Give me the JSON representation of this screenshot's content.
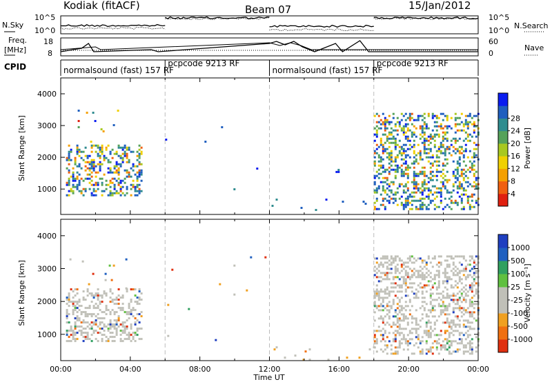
{
  "header": {
    "station": "Kodiak (fitACF)",
    "beam": "Beam 07",
    "date": "15/Jan/2012"
  },
  "top_panel": {
    "left_labels": [
      "N.Sky",
      "Freq.",
      "[MHz]",
      "CPID"
    ],
    "right_labels": [
      "N.Search",
      "Nave"
    ],
    "nsky_ticks": [
      "10^5",
      "10^0"
    ],
    "freq_ticks": [
      "18",
      "8"
    ],
    "nave_ticks": [
      "60",
      "0"
    ],
    "nsearch_ticks": [
      "10^5",
      "10^0"
    ],
    "cpid_segments": [
      {
        "label": "normalsound (fast) 157 RF",
        "start_hour": 0,
        "end_hour": 6
      },
      {
        "label": "pcpcode 9213 RF",
        "start_hour": 6,
        "end_hour": 12
      },
      {
        "label": "normalsound (fast) 157 RF",
        "start_hour": 12,
        "end_hour": 18
      },
      {
        "label": "pcpcode 9213 RF",
        "start_hour": 18,
        "end_hour": 24
      }
    ]
  },
  "chart_data": [
    {
      "type": "heatmap",
      "title": "Power",
      "ylabel": "Slant Range [km]",
      "xlabel": "",
      "xlim_hours": [
        0,
        24
      ],
      "ylim": [
        200,
        4500
      ],
      "yticks": [
        "1000",
        "2000",
        "3000",
        "4000"
      ],
      "colorbar": {
        "label": "Power [dB]",
        "ticks": [
          "4",
          "8",
          "12",
          "16",
          "20",
          "24",
          "28"
        ],
        "colors": [
          "#0a1cf0",
          "#1f5fbf",
          "#2f8c8f",
          "#55a25a",
          "#a8c820",
          "#f0d000",
          "#f5a000",
          "#f06010",
          "#e02010"
        ]
      },
      "echo_regions": [
        {
          "t0": 0.3,
          "t1": 4.7,
          "r0": 800,
          "r1": 2400,
          "density": "high",
          "level": "mixed-high"
        },
        {
          "t0": 0.5,
          "t1": 3.8,
          "r0": 2400,
          "r1": 3500,
          "density": "low",
          "level": "mixed"
        },
        {
          "t0": 6.0,
          "t1": 12.0,
          "r0": 300,
          "r1": 3500,
          "density": "very-low",
          "level": "low"
        },
        {
          "t0": 12.0,
          "t1": 18.0,
          "r0": 250,
          "r1": 700,
          "density": "low",
          "level": "low"
        },
        {
          "t0": 15.8,
          "t1": 16.1,
          "r0": 1550,
          "r1": 1700,
          "density": "medium",
          "level": "low"
        },
        {
          "t0": 18.0,
          "t1": 24.0,
          "r0": 400,
          "r1": 3400,
          "density": "high",
          "level": "mixed-high"
        }
      ]
    },
    {
      "type": "heatmap",
      "title": "Velocity",
      "ylabel": "Slant Range [km]",
      "xlabel": "Time UT",
      "xlim_hours": [
        0,
        24
      ],
      "ylim": [
        200,
        4500
      ],
      "yticks": [
        "1000",
        "2000",
        "3000",
        "4000"
      ],
      "xticks": [
        "00:00",
        "04:00",
        "08:00",
        "12:00",
        "16:00",
        "20:00",
        "00:00"
      ],
      "colorbar": {
        "label": "Velocity [m s⁻¹]",
        "ticks": [
          "1000",
          "500",
          "100",
          "25",
          "-25",
          "-100",
          "-500",
          "-1000"
        ],
        "colors": [
          "#1f3fc0",
          "#2060c0",
          "#30a060",
          "#60c040",
          "#c0c0b8",
          "#c0c0b8",
          "#f0a020",
          "#f07010",
          "#e03010"
        ]
      },
      "echo_regions": [
        {
          "t0": 0.3,
          "t1": 4.7,
          "r0": 800,
          "r1": 2400,
          "density": "high",
          "level": "near-zero"
        },
        {
          "t0": 0.5,
          "t1": 3.8,
          "r0": 2400,
          "r1": 3500,
          "density": "low",
          "level": "mixed"
        },
        {
          "t0": 6.0,
          "t1": 12.0,
          "r0": 300,
          "r1": 3500,
          "density": "very-low",
          "level": "mixed"
        },
        {
          "t0": 12.0,
          "t1": 18.0,
          "r0": 250,
          "r1": 700,
          "density": "low",
          "level": "negative"
        },
        {
          "t0": 18.0,
          "t1": 24.0,
          "r0": 400,
          "r1": 3400,
          "density": "high",
          "level": "near-zero"
        }
      ]
    }
  ]
}
